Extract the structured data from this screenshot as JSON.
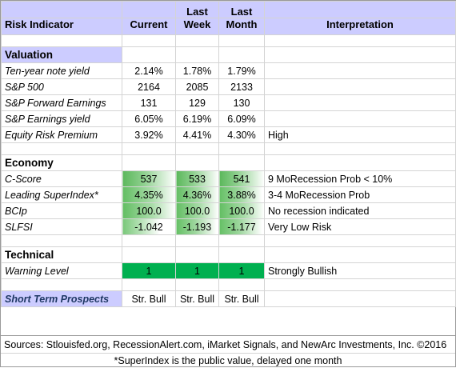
{
  "header": {
    "indicator": "Risk Indicator",
    "current": "Current",
    "last_week_top": "Last",
    "last_week_bot": "Week",
    "last_month_top": "Last",
    "last_month_bot": "Month",
    "interpretation": "Interpretation"
  },
  "valuation": {
    "title": "Valuation",
    "rows": [
      {
        "label": "Ten-year note yield",
        "current": "2.14%",
        "week": "1.78%",
        "month": "1.79%",
        "interp": ""
      },
      {
        "label": "S&P 500",
        "current": "2164",
        "week": "2085",
        "month": "2133",
        "interp": ""
      },
      {
        "label": "S&P Forward Earnings",
        "current": "131",
        "week": "129",
        "month": "130",
        "interp": ""
      },
      {
        "label": "S&P Earnings yield",
        "current": "6.05%",
        "week": "6.19%",
        "month": "6.09%",
        "interp": ""
      },
      {
        "label": "Equity Risk Premium",
        "current": "3.92%",
        "week": "4.41%",
        "month": "4.30%",
        "interp": "High"
      }
    ]
  },
  "economy": {
    "title": "Economy",
    "rows": [
      {
        "label": "C-Score",
        "current": "537",
        "week": "533",
        "month": "541",
        "interp": "9 MoRecession Prob < 10%"
      },
      {
        "label": "Leading SuperIndex*",
        "current": "4.35%",
        "week": "4.36%",
        "month": "3.88%",
        "interp": "3-4 MoRecession Prob"
      },
      {
        "label": "BCIp",
        "current": "100.0",
        "week": "100.0",
        "month": "100.0",
        "interp": "No recession indicated"
      },
      {
        "label": "SLFSI",
        "current": "-1.042",
        "week": "-1.193",
        "month": "-1.177",
        "interp": "Very Low Risk"
      }
    ]
  },
  "technical": {
    "title": "Technical",
    "rows": [
      {
        "label": "Warning Level",
        "current": "1",
        "week": "1",
        "month": "1",
        "interp": "Strongly Bullish"
      }
    ]
  },
  "prospects": {
    "label": "Short Term Prospects",
    "current": "Str. Bull",
    "week": "Str. Bull",
    "month": "Str. Bull"
  },
  "footer": {
    "sources": "Sources: Stlouisfed.org, RecessionAlert.com, iMarket Signals, and NewArc Investments, Inc. ©2016",
    "note": "*SuperIndex is the public value, delayed one month"
  },
  "colors": {
    "header_bg": "#ccccff",
    "green_strong": "#00b050",
    "green_grad": "#63be63"
  }
}
